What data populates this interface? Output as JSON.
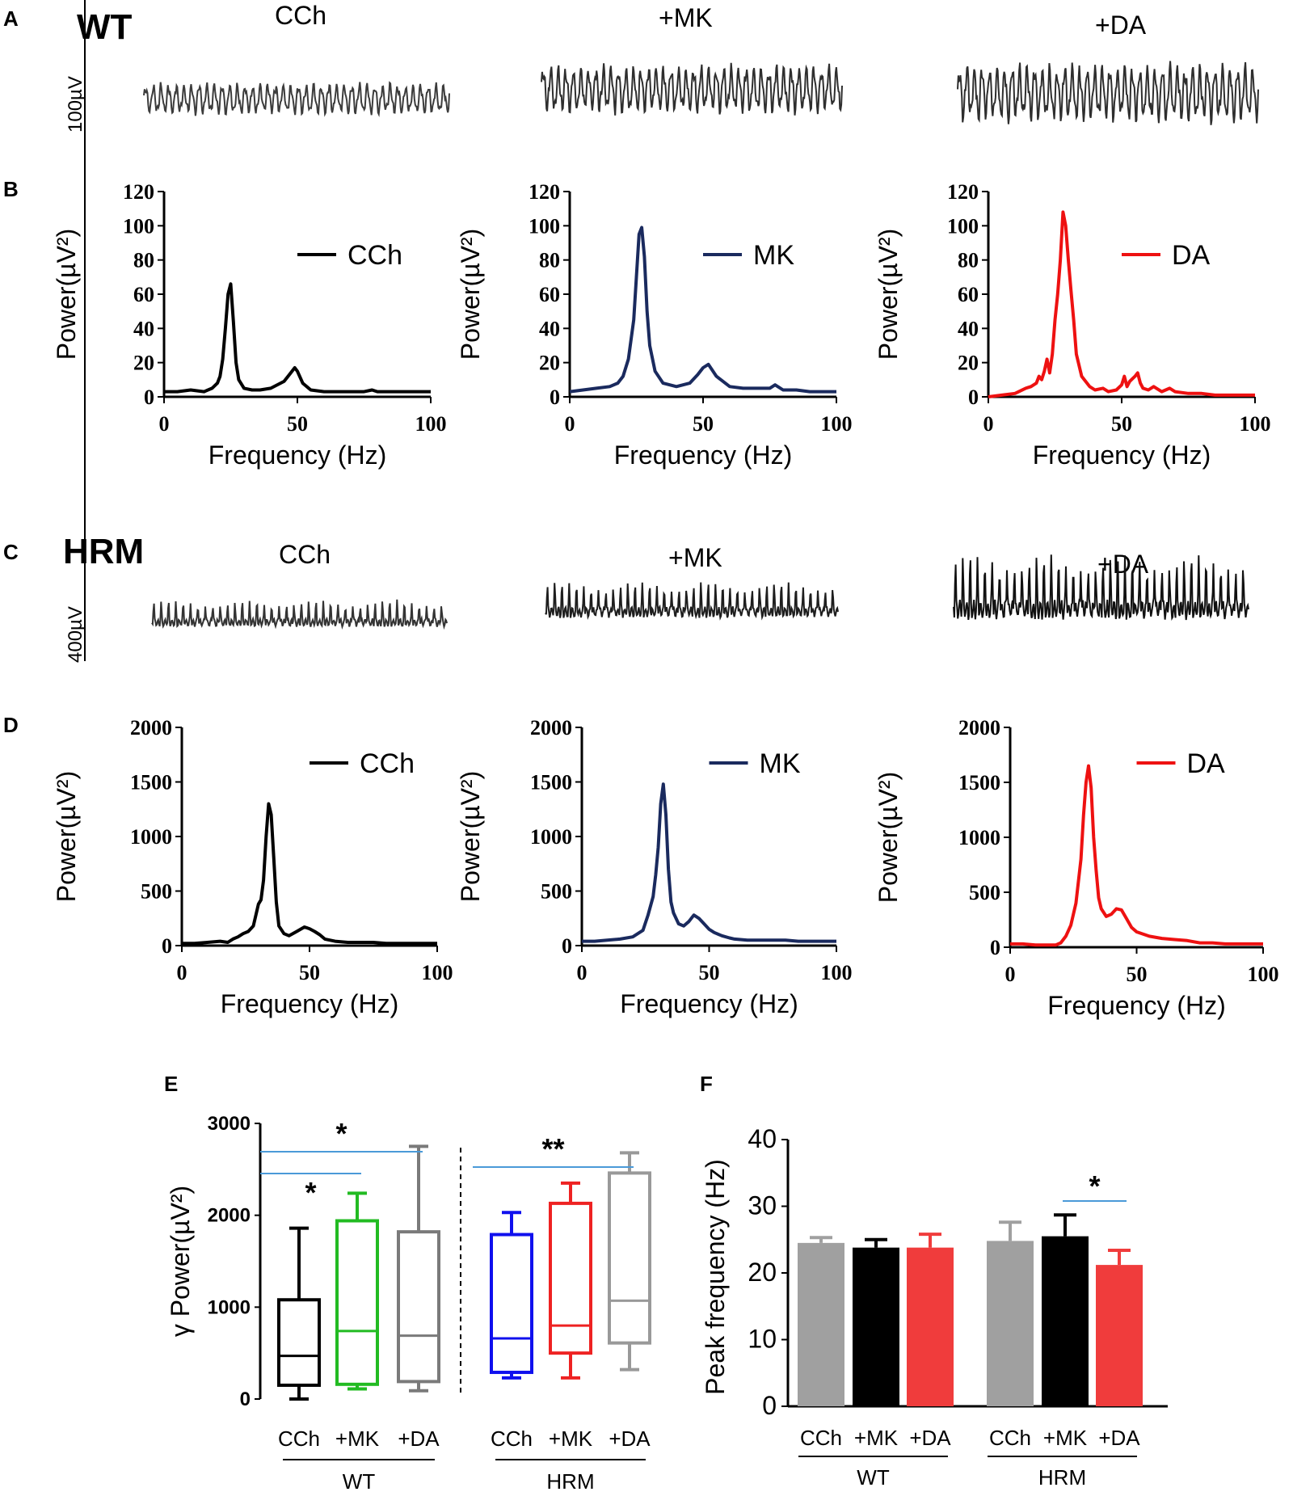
{
  "panel_labels": {
    "A": "A",
    "B": "B",
    "C": "C",
    "D": "D",
    "E": "E",
    "F": "F"
  },
  "traces": [
    {
      "row": "A",
      "genotype": "WT",
      "scalebar": "100µV",
      "titles": [
        "CCh",
        "+MK",
        "+DA"
      ],
      "colors": [
        "#3c3c3c",
        "#2e2e2e",
        "#2e2e2e"
      ],
      "amplitudes": [
        1.0,
        1.35,
        1.45
      ]
    },
    {
      "row": "C",
      "genotype": "HRM",
      "scalebar": "400µV",
      "titles": [
        "CCh",
        "+MK",
        "+DA"
      ],
      "colors": [
        "#333333",
        "#1e1e1e",
        "#111111"
      ],
      "amplitudes": [
        1.0,
        1.1,
        1.25
      ]
    }
  ],
  "chart_data": [
    {
      "id": "B1",
      "type": "line",
      "xlabel": "Frequency (Hz)",
      "ylabel": "Power(µV²)",
      "ylim": [
        0,
        120
      ],
      "yticks": [
        "0",
        "20",
        "40",
        "60",
        "80",
        "100",
        "120"
      ],
      "xlim": [
        0,
        100
      ],
      "xticks": [
        "0",
        "50",
        "100"
      ],
      "legend": "CCh",
      "color": "#000000",
      "x": [
        0,
        5,
        10,
        15,
        18,
        20,
        21,
        22,
        23,
        24,
        25,
        26,
        27,
        28,
        30,
        33,
        36,
        40,
        45,
        47,
        49,
        50,
        52,
        55,
        60,
        65,
        70,
        75,
        78,
        80,
        85,
        90,
        95,
        100
      ],
      "y": [
        3,
        3,
        4,
        3,
        5,
        8,
        12,
        22,
        40,
        60,
        66,
        44,
        20,
        10,
        5,
        4,
        4,
        5,
        9,
        13,
        17,
        15,
        8,
        4,
        3,
        3,
        3,
        3,
        4,
        3,
        3,
        3,
        3,
        3
      ]
    },
    {
      "id": "B2",
      "type": "line",
      "xlabel": "Frequency (Hz)",
      "ylabel": "Power(µV²)",
      "ylim": [
        0,
        120
      ],
      "yticks": [
        "0",
        "20",
        "40",
        "60",
        "80",
        "100",
        "120"
      ],
      "xlim": [
        0,
        100
      ],
      "xticks": [
        "0",
        "50",
        "100"
      ],
      "legend": "MK",
      "color": "#1a2a5e",
      "x": [
        0,
        5,
        10,
        15,
        18,
        20,
        22,
        24,
        25,
        26,
        27,
        28,
        29,
        30,
        32,
        35,
        40,
        45,
        48,
        50,
        52,
        55,
        60,
        65,
        70,
        75,
        77,
        80,
        85,
        90,
        95,
        100
      ],
      "y": [
        3,
        4,
        5,
        6,
        8,
        12,
        22,
        45,
        70,
        95,
        99,
        82,
        50,
        30,
        15,
        8,
        6,
        8,
        13,
        17,
        19,
        12,
        6,
        5,
        5,
        5,
        7,
        4,
        4,
        3,
        3,
        3
      ]
    },
    {
      "id": "B3",
      "type": "line",
      "xlabel": "Frequency (Hz)",
      "ylabel": "Power(µV²)",
      "ylim": [
        0,
        120
      ],
      "yticks": [
        "0",
        "20",
        "40",
        "60",
        "80",
        "100",
        "120"
      ],
      "xlim": [
        0,
        100
      ],
      "xticks": [
        "0",
        "50",
        "100"
      ],
      "legend": "DA",
      "color": "#ee1111",
      "x": [
        0,
        5,
        10,
        14,
        16,
        18,
        19,
        20,
        21,
        22,
        23,
        24,
        25,
        26,
        27,
        28,
        29,
        30,
        31,
        32,
        33,
        35,
        38,
        40,
        43,
        45,
        48,
        50,
        51,
        52,
        53,
        55,
        56,
        57,
        58,
        60,
        62,
        65,
        68,
        70,
        75,
        80,
        85,
        90,
        95,
        100
      ],
      "y": [
        0,
        1,
        2,
        5,
        6,
        8,
        12,
        10,
        15,
        22,
        14,
        25,
        45,
        60,
        80,
        108,
        100,
        80,
        62,
        45,
        25,
        12,
        6,
        4,
        5,
        3,
        4,
        7,
        12,
        6,
        9,
        12,
        14,
        8,
        5,
        4,
        6,
        3,
        5,
        3,
        2,
        2,
        1,
        1,
        1,
        1
      ]
    },
    {
      "id": "D1",
      "type": "line",
      "xlabel": "Frequency (Hz)",
      "ylabel": "Power(µV²)",
      "ylim": [
        0,
        2000
      ],
      "yticks": [
        "0",
        "500",
        "1000",
        "1500",
        "2000"
      ],
      "xlim": [
        0,
        100
      ],
      "xticks": [
        "0",
        "50",
        "100"
      ],
      "legend": "CCh",
      "color": "#000000",
      "x": [
        0,
        5,
        10,
        15,
        18,
        20,
        22,
        24,
        26,
        28,
        30,
        31,
        32,
        33,
        34,
        35,
        36,
        37,
        38,
        40,
        42,
        45,
        48,
        50,
        52,
        54,
        56,
        60,
        65,
        70,
        75,
        80,
        85,
        90,
        95,
        100
      ],
      "y": [
        20,
        20,
        30,
        40,
        30,
        60,
        80,
        110,
        130,
        180,
        380,
        420,
        600,
        1000,
        1300,
        1200,
        800,
        400,
        180,
        110,
        90,
        130,
        170,
        155,
        130,
        100,
        60,
        40,
        30,
        30,
        30,
        20,
        20,
        20,
        20,
        20
      ]
    },
    {
      "id": "D2",
      "type": "line",
      "xlabel": "Frequency (Hz)",
      "ylabel": "Power(µV²)",
      "ylim": [
        0,
        2000
      ],
      "yticks": [
        "0",
        "500",
        "1000",
        "1500",
        "2000"
      ],
      "xlim": [
        0,
        100
      ],
      "xticks": [
        "0",
        "50",
        "100"
      ],
      "legend": "MK",
      "color": "#1a2a5e",
      "x": [
        0,
        5,
        10,
        15,
        20,
        24,
        26,
        28,
        29,
        30,
        31,
        32,
        33,
        34,
        35,
        36,
        38,
        40,
        42,
        44,
        46,
        48,
        50,
        52,
        55,
        58,
        60,
        65,
        70,
        75,
        80,
        85,
        90,
        95,
        100
      ],
      "y": [
        40,
        40,
        50,
        60,
        80,
        140,
        280,
        450,
        650,
        900,
        1300,
        1480,
        1200,
        700,
        400,
        300,
        200,
        180,
        220,
        280,
        250,
        200,
        150,
        120,
        90,
        70,
        60,
        50,
        50,
        50,
        50,
        40,
        40,
        40,
        40
      ]
    },
    {
      "id": "D3",
      "type": "line",
      "xlabel": "Frequency (Hz)",
      "ylabel": "Power(µV²)",
      "ylim": [
        0,
        2000
      ],
      "yticks": [
        "0",
        "500",
        "1000",
        "1500",
        "2000"
      ],
      "xlim": [
        0,
        100
      ],
      "xticks": [
        "0",
        "50",
        "100"
      ],
      "legend": "DA",
      "color": "#ee1111",
      "x": [
        0,
        5,
        10,
        15,
        18,
        20,
        22,
        24,
        26,
        28,
        29,
        30,
        31,
        32,
        33,
        34,
        35,
        36,
        38,
        40,
        42,
        44,
        46,
        48,
        50,
        55,
        60,
        65,
        70,
        75,
        80,
        85,
        90,
        95,
        100
      ],
      "y": [
        30,
        30,
        20,
        20,
        20,
        40,
        100,
        200,
        400,
        800,
        1200,
        1500,
        1650,
        1450,
        1000,
        700,
        450,
        350,
        280,
        300,
        350,
        340,
        260,
        180,
        140,
        100,
        80,
        70,
        60,
        40,
        40,
        30,
        30,
        30,
        30
      ]
    },
    {
      "id": "E",
      "type": "box",
      "ylabel": "γ Power(µV²)",
      "ylim": [
        0,
        3000
      ],
      "yticks": [
        "0",
        "1000",
        "2000",
        "3000"
      ],
      "groups": [
        {
          "name": "WT",
          "categories": [
            "CCh",
            "+MK",
            "+DA"
          ]
        },
        {
          "name": "HRM",
          "categories": [
            "CCh",
            "+MK",
            "+DA"
          ]
        }
      ],
      "boxes": [
        {
          "cat": "CCh",
          "group": "WT",
          "color": "#000000",
          "min": 0,
          "q1": 150,
          "median": 470,
          "q3": 1080,
          "max": 1860
        },
        {
          "cat": "+MK",
          "group": "WT",
          "color": "#22bb22",
          "min": 110,
          "q1": 160,
          "median": 740,
          "q3": 1940,
          "max": 2240
        },
        {
          "cat": "+DA",
          "group": "WT",
          "color": "#7a7a7a",
          "min": 90,
          "q1": 190,
          "median": 690,
          "q3": 1820,
          "max": 2750
        },
        {
          "cat": "CCh",
          "group": "HRM",
          "color": "#1010ee",
          "min": 230,
          "q1": 290,
          "median": 660,
          "q3": 1790,
          "max": 2030
        },
        {
          "cat": "+MK",
          "group": "HRM",
          "color": "#ee2222",
          "min": 230,
          "q1": 500,
          "median": 800,
          "q3": 2130,
          "max": 2350
        },
        {
          "cat": "+DA",
          "group": "HRM",
          "color": "#999999",
          "min": 320,
          "q1": 610,
          "median": 1070,
          "q3": 2460,
          "max": 2680
        }
      ],
      "significance": [
        {
          "from": 0,
          "to": 2,
          "label": "*"
        },
        {
          "from": 0,
          "to": 1,
          "label": "*"
        },
        {
          "from": 3,
          "to": 5,
          "label": "**"
        }
      ]
    },
    {
      "id": "F",
      "type": "bar",
      "ylabel": "Peak frequency (Hz)",
      "ylim": [
        0,
        40
      ],
      "yticks": [
        "0",
        "10",
        "20",
        "30",
        "40"
      ],
      "groups": [
        {
          "name": "WT",
          "categories": [
            "CCh",
            "+MK",
            "+DA"
          ]
        },
        {
          "name": "HRM",
          "categories": [
            "CCh",
            "+MK",
            "+DA"
          ]
        }
      ],
      "bars": [
        {
          "cat": "CCh",
          "group": "WT",
          "value": 24.5,
          "err": 0.8,
          "color": "#a0a0a0"
        },
        {
          "cat": "+MK",
          "group": "WT",
          "value": 23.8,
          "err": 1.2,
          "color": "#000000"
        },
        {
          "cat": "+DA",
          "group": "WT",
          "value": 23.8,
          "err": 2.0,
          "color": "#f03c3c"
        },
        {
          "cat": "CCh",
          "group": "HRM",
          "value": 24.8,
          "err": 2.8,
          "color": "#a0a0a0"
        },
        {
          "cat": "+MK",
          "group": "HRM",
          "value": 25.5,
          "err": 3.2,
          "color": "#000000"
        },
        {
          "cat": "+DA",
          "group": "HRM",
          "value": 21.2,
          "err": 2.2,
          "color": "#f03c3c"
        }
      ],
      "significance": [
        {
          "from": 4,
          "to": 5,
          "label": "*"
        }
      ]
    }
  ]
}
